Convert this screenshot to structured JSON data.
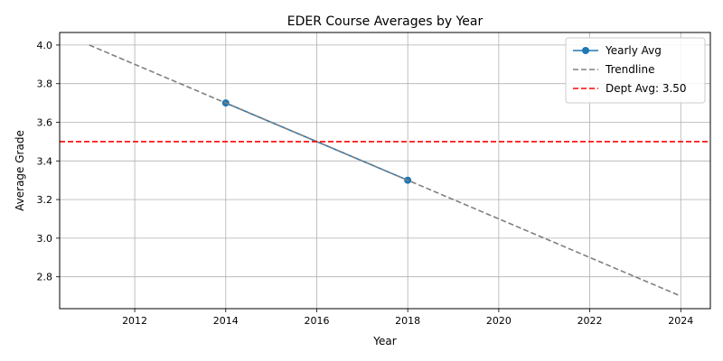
{
  "chart_data": {
    "type": "line",
    "title": "EDER Course Averages by Year",
    "xlabel": "Year",
    "ylabel": "Average Grade",
    "xlim": [
      2010.35,
      2024.65
    ],
    "ylim": [
      2.635,
      4.065
    ],
    "x_ticks": [
      2012,
      2014,
      2016,
      2018,
      2020,
      2022,
      2024
    ],
    "y_ticks": [
      2.8,
      3.0,
      3.2,
      3.4,
      3.6,
      3.8,
      4.0
    ],
    "grid": true,
    "legend_position": "top-right",
    "series": [
      {
        "name": "Yearly Avg",
        "style": "line-marker",
        "color": "#1f77b4",
        "x": [
          2014,
          2018
        ],
        "y": [
          3.7,
          3.3
        ]
      },
      {
        "name": "Trendline",
        "style": "dashed",
        "color": "#808080",
        "x": [
          2011,
          2024
        ],
        "y": [
          4.0,
          2.7
        ]
      },
      {
        "name": "Dept Avg: 3.50",
        "style": "dashed-horizontal",
        "color": "#ff0000",
        "y_value": 3.5
      }
    ]
  }
}
